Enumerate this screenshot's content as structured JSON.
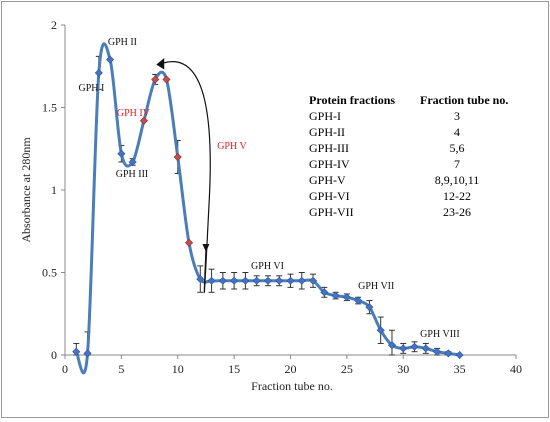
{
  "chart_data": {
    "type": "line",
    "title": "",
    "xlabel": "Fraction tube no.",
    "ylabel": "Absorbance at 280nm",
    "xlim": [
      0,
      40
    ],
    "ylim": [
      0,
      2
    ],
    "x_ticks": [
      "0",
      "5",
      "10",
      "15",
      "20",
      "25",
      "30",
      "35",
      "40"
    ],
    "y_ticks": [
      "0",
      "0.5",
      "1",
      "1.5",
      "2"
    ],
    "grid": false,
    "colors": {
      "line": "#4a7ebb",
      "marker": "#4472c4",
      "highlight_marker": "#c0504d",
      "error_bar": "#333333",
      "red_label": "#e02020",
      "arrow": "#111111"
    },
    "series": [
      {
        "points": [
          {
            "x": 1,
            "y": 0.02,
            "err": 0.05
          },
          {
            "x": 2,
            "y": 0.01,
            "err": 0.13
          },
          {
            "x": 3,
            "y": 1.71,
            "err": 0.1
          },
          {
            "x": 4,
            "y": 1.79,
            "err": 0
          },
          {
            "x": 5,
            "y": 1.22,
            "err": 0.05
          },
          {
            "x": 6,
            "y": 1.17,
            "err": 0.02
          },
          {
            "x": 7,
            "y": 1.42,
            "err": 0
          },
          {
            "x": 8,
            "y": 1.67,
            "err": 0.03
          },
          {
            "x": 9,
            "y": 1.67,
            "err": 0
          },
          {
            "x": 10,
            "y": 1.2,
            "err": 0.1
          },
          {
            "x": 11,
            "y": 0.68,
            "err": 0
          },
          {
            "x": 12,
            "y": 0.46,
            "err": 0.08
          },
          {
            "x": 13,
            "y": 0.45,
            "err": 0.07
          },
          {
            "x": 14,
            "y": 0.45,
            "err": 0.05
          },
          {
            "x": 15,
            "y": 0.45,
            "err": 0.05
          },
          {
            "x": 16,
            "y": 0.45,
            "err": 0.05
          },
          {
            "x": 17,
            "y": 0.45,
            "err": 0.03
          },
          {
            "x": 18,
            "y": 0.45,
            "err": 0.03
          },
          {
            "x": 19,
            "y": 0.45,
            "err": 0.03
          },
          {
            "x": 20,
            "y": 0.45,
            "err": 0.04
          },
          {
            "x": 21,
            "y": 0.45,
            "err": 0.05
          },
          {
            "x": 22,
            "y": 0.45,
            "err": 0.04
          },
          {
            "x": 23,
            "y": 0.38,
            "err": 0.03
          },
          {
            "x": 24,
            "y": 0.36,
            "err": 0.02
          },
          {
            "x": 25,
            "y": 0.35,
            "err": 0.02
          },
          {
            "x": 26,
            "y": 0.33,
            "err": 0.02
          },
          {
            "x": 27,
            "y": 0.29,
            "err": 0.04
          },
          {
            "x": 28,
            "y": 0.15,
            "err": 0.08
          },
          {
            "x": 29,
            "y": 0.06,
            "err": 0.09
          },
          {
            "x": 30,
            "y": 0.04,
            "err": 0.03
          },
          {
            "x": 31,
            "y": 0.05,
            "err": 0.03
          },
          {
            "x": 32,
            "y": 0.04,
            "err": 0.03
          },
          {
            "x": 33,
            "y": 0.02,
            "err": 0.02
          },
          {
            "x": 34,
            "y": 0.01,
            "err": 0.01
          },
          {
            "x": 35,
            "y": 0.0,
            "err": 0
          }
        ],
        "highlight_x": [
          7,
          8,
          9,
          10,
          11
        ]
      }
    ],
    "annotations": [
      {
        "text": "GPH I",
        "at_x": 1.2,
        "at_y": 1.6,
        "color": "#111111"
      },
      {
        "text": "GPH II",
        "at_x": 3.8,
        "at_y": 1.88,
        "color": "#111111"
      },
      {
        "text": "GPH III",
        "at_x": 4.5,
        "at_y": 1.08,
        "color": "#111111"
      },
      {
        "text": "GPH IV",
        "at_x": 4.6,
        "at_y": 1.45,
        "color": "#e02020"
      },
      {
        "text": "GPH V",
        "at_x": 13.5,
        "at_y": 1.25,
        "color": "#e02020"
      },
      {
        "text": "GPH VI",
        "at_x": 16.5,
        "at_y": 0.52,
        "color": "#111111"
      },
      {
        "text": "GPH VII",
        "at_x": 26,
        "at_y": 0.4,
        "color": "#111111"
      },
      {
        "text": "GPH VIII",
        "at_x": 31.5,
        "at_y": 0.11,
        "color": "#111111"
      }
    ],
    "table": {
      "headers": [
        "Protein fractions",
        "Fraction tube no."
      ],
      "rows": [
        [
          "GPH-I",
          "3"
        ],
        [
          "GPH-II",
          "4"
        ],
        [
          "GPH-III",
          "5,6"
        ],
        [
          "GPH-IV",
          "7"
        ],
        [
          "GPH-V",
          "8,9,10,11"
        ],
        [
          "GPH-VI",
          "12-22"
        ],
        [
          "GPH-VII",
          "23-26"
        ]
      ]
    }
  }
}
